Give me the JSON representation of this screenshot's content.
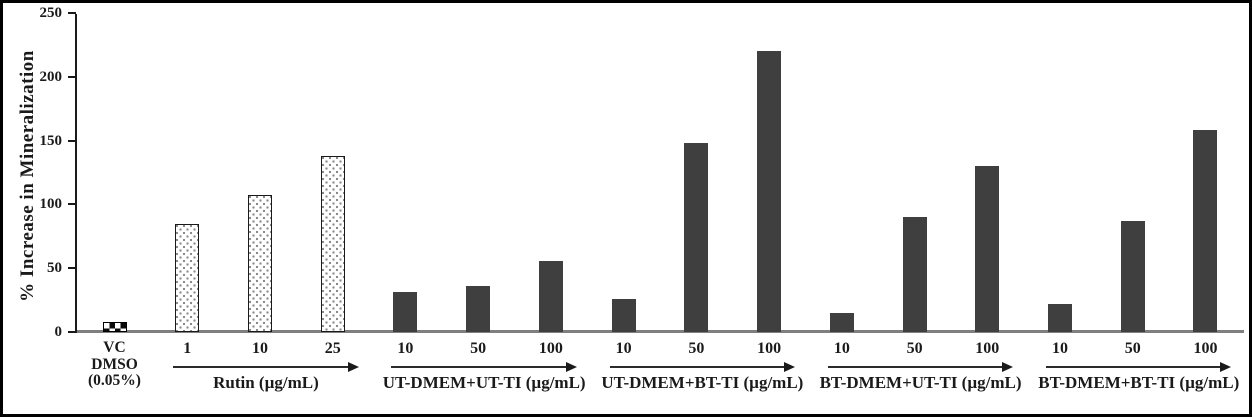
{
  "chart_data": {
    "type": "bar",
    "title": "",
    "xlabel": "",
    "ylabel": "% Increase in Mineralization",
    "ylim": [
      0,
      250
    ],
    "yticks": [
      0,
      50,
      100,
      150,
      200,
      250
    ],
    "grid": false,
    "legend": null,
    "groups": [
      {
        "name": "VC DMSO (0.05%)",
        "label_lines": [
          "VC",
          "DMSO",
          "(0.05%)"
        ],
        "pattern": "checker",
        "arrow": false,
        "categories": [
          ""
        ],
        "values": [
          8
        ]
      },
      {
        "name": "Rutin (µg/mL)",
        "pattern": "dots",
        "arrow": true,
        "categories": [
          "1",
          "10",
          "25"
        ],
        "values": [
          85,
          107,
          138
        ]
      },
      {
        "name": "UT-DMEM+UT-TI (µg/mL)",
        "pattern": "solid",
        "arrow": true,
        "categories": [
          "10",
          "50",
          "100"
        ],
        "values": [
          31,
          36,
          56
        ]
      },
      {
        "name": "UT-DMEM+BT-TI (µg/mL)",
        "pattern": "solid",
        "arrow": true,
        "categories": [
          "10",
          "50",
          "100"
        ],
        "values": [
          26,
          148,
          220
        ]
      },
      {
        "name": "BT-DMEM+UT-TI (µg/mL)",
        "pattern": "solid",
        "arrow": true,
        "categories": [
          "10",
          "50",
          "100"
        ],
        "values": [
          15,
          90,
          130
        ]
      },
      {
        "name": "BT-DMEM+BT-TI (µg/mL)",
        "pattern": "solid",
        "arrow": true,
        "categories": [
          "10",
          "50",
          "100"
        ],
        "values": [
          22,
          87,
          158
        ]
      }
    ],
    "colors": {
      "solid_bar": "#3f3f3f",
      "baseline": "#7f7f7f",
      "axis": "#1a1a1a",
      "background": "#ffffff"
    }
  }
}
